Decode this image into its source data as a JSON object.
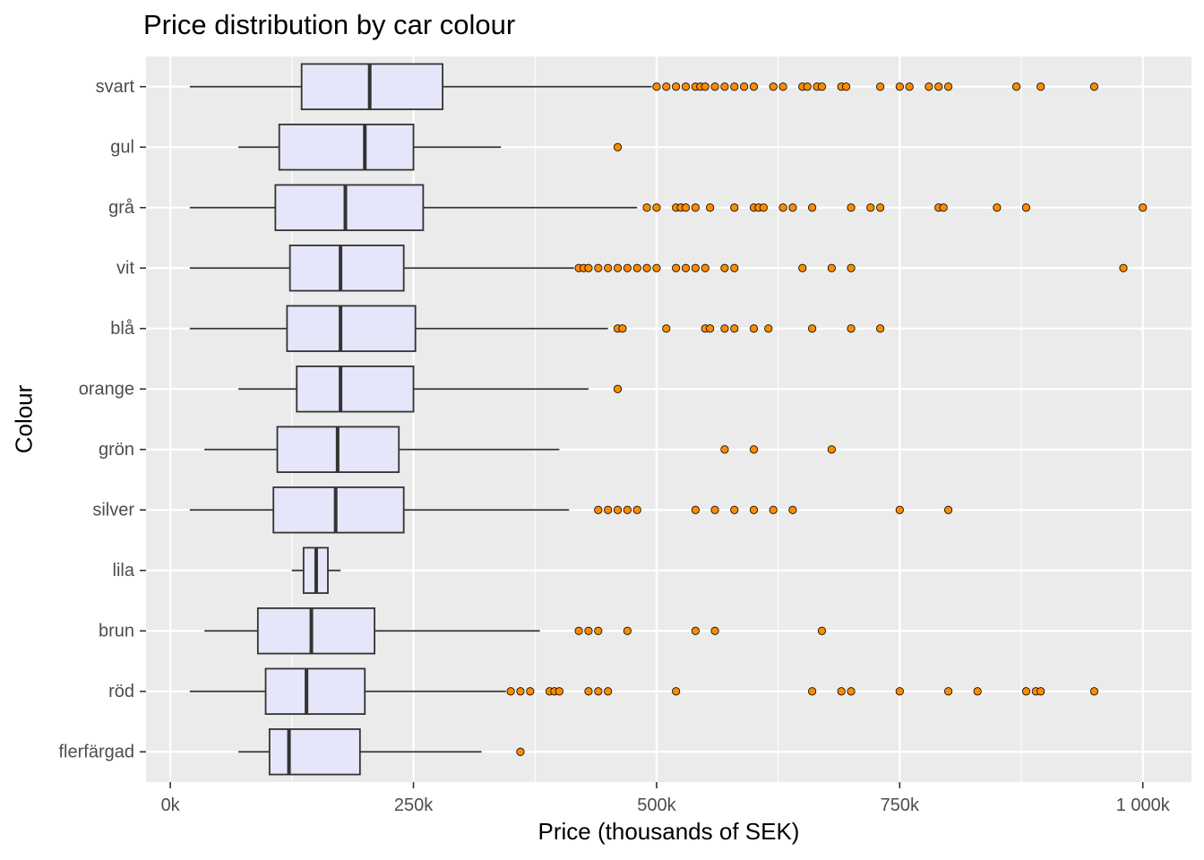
{
  "chart_data": {
    "type": "boxplot",
    "orientation": "horizontal",
    "title": "Price distribution by car colour",
    "xlabel": "Price (thousands of SEK)",
    "ylabel": "Colour",
    "xlim": [
      -25,
      1050
    ],
    "x_ticks": [
      0,
      250,
      500,
      750,
      1000
    ],
    "x_tick_labels": [
      "0k",
      "250k",
      "500k",
      "750k",
      "1 000k"
    ],
    "grid": true,
    "legend": "none",
    "colors": {
      "panel_bg": "#ebebeb",
      "grid": "#ffffff",
      "box_fill": "#e6e6fa",
      "box_stroke": "#333333",
      "outlier_fill": "#ff8c00",
      "outlier_stroke": "#000000"
    },
    "categories": [
      "svart",
      "gul",
      "grå",
      "vit",
      "blå",
      "orange",
      "grön",
      "silver",
      "lila",
      "brun",
      "röd",
      "flerfärgad"
    ],
    "boxes": [
      {
        "category": "svart",
        "whisker_low": 20,
        "q1": 135,
        "median": 205,
        "q3": 280,
        "whisker_high": 495,
        "outliers": [
          500,
          510,
          520,
          530,
          540,
          545,
          550,
          560,
          570,
          580,
          590,
          600,
          620,
          630,
          650,
          655,
          665,
          670,
          690,
          695,
          730,
          750,
          760,
          780,
          790,
          800,
          870,
          895,
          950
        ]
      },
      {
        "category": "gul",
        "whisker_low": 70,
        "q1": 112,
        "median": 200,
        "q3": 250,
        "whisker_high": 340,
        "outliers": [
          460
        ]
      },
      {
        "category": "grå",
        "whisker_low": 20,
        "q1": 108,
        "median": 180,
        "q3": 260,
        "whisker_high": 480,
        "outliers": [
          490,
          500,
          520,
          525,
          530,
          540,
          555,
          580,
          600,
          605,
          610,
          630,
          640,
          660,
          700,
          720,
          730,
          790,
          795,
          850,
          880,
          1000
        ]
      },
      {
        "category": "vit",
        "whisker_low": 20,
        "q1": 123,
        "median": 175,
        "q3": 240,
        "whisker_high": 415,
        "outliers": [
          420,
          425,
          430,
          440,
          450,
          460,
          470,
          480,
          490,
          500,
          520,
          530,
          540,
          550,
          570,
          580,
          650,
          680,
          700,
          980
        ]
      },
      {
        "category": "blå",
        "whisker_low": 20,
        "q1": 120,
        "median": 175,
        "q3": 252,
        "whisker_high": 450,
        "outliers": [
          460,
          465,
          510,
          550,
          555,
          570,
          580,
          600,
          615,
          660,
          700,
          730
        ]
      },
      {
        "category": "orange",
        "whisker_low": 70,
        "q1": 130,
        "median": 175,
        "q3": 250,
        "whisker_high": 430,
        "outliers": [
          460
        ]
      },
      {
        "category": "grön",
        "whisker_low": 35,
        "q1": 110,
        "median": 172,
        "q3": 235,
        "whisker_high": 400,
        "outliers": [
          570,
          600,
          680
        ]
      },
      {
        "category": "silver",
        "whisker_low": 20,
        "q1": 106,
        "median": 170,
        "q3": 240,
        "whisker_high": 410,
        "outliers": [
          440,
          450,
          460,
          470,
          480,
          540,
          560,
          580,
          600,
          620,
          640,
          750,
          800
        ]
      },
      {
        "category": "lila",
        "whisker_low": 125,
        "q1": 137,
        "median": 150,
        "q3": 162,
        "whisker_high": 175,
        "outliers": []
      },
      {
        "category": "brun",
        "whisker_low": 35,
        "q1": 90,
        "median": 145,
        "q3": 210,
        "whisker_high": 380,
        "outliers": [
          420,
          430,
          440,
          470,
          540,
          560,
          670
        ]
      },
      {
        "category": "röd",
        "whisker_low": 20,
        "q1": 98,
        "median": 140,
        "q3": 200,
        "whisker_high": 345,
        "outliers": [
          350,
          360,
          370,
          390,
          395,
          400,
          430,
          440,
          450,
          520,
          660,
          690,
          700,
          750,
          800,
          830,
          880,
          890,
          895,
          950
        ]
      },
      {
        "category": "flerfärgad",
        "whisker_low": 70,
        "q1": 102,
        "median": 122,
        "q3": 195,
        "whisker_high": 320,
        "outliers": [
          360
        ]
      }
    ]
  }
}
